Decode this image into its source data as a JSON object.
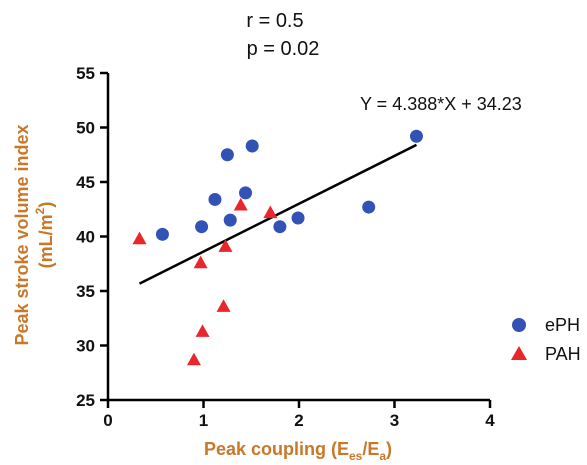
{
  "colors": {
    "axis_title": "#C9782A",
    "ePH": "#3352B5",
    "PAH": "#E8262B",
    "fit_line": "#000000"
  },
  "chart_data": {
    "type": "scatter",
    "stats": {
      "r": "r = 0.5",
      "p": "p = 0.02"
    },
    "equation": "Y = 4.388*X + 34.23",
    "xlabel": {
      "main": "Peak coupling (E",
      "sub1": "es",
      "mid": "/E",
      "sub2": "a",
      "end": ")"
    },
    "ylabel": {
      "line1": "Peak stroke volume index",
      "line2_main": "(mL/m",
      "line2_sup": "2",
      "line2_end": ")"
    },
    "xlim": [
      0,
      4
    ],
    "ylim": [
      25,
      55
    ],
    "xticks": [
      0,
      1,
      2,
      3,
      4
    ],
    "yticks": [
      25,
      30,
      35,
      40,
      45,
      50,
      55
    ],
    "grid": false,
    "legend_position": "right",
    "regression": {
      "slope": 4.388,
      "intercept": 34.23,
      "x_range": [
        0.33,
        3.23
      ]
    },
    "series": [
      {
        "name": "ePH",
        "marker": "circle",
        "points": [
          [
            0.57,
            40.2
          ],
          [
            0.98,
            40.9
          ],
          [
            1.12,
            43.4
          ],
          [
            1.25,
            47.5
          ],
          [
            1.28,
            41.5
          ],
          [
            1.44,
            44.0
          ],
          [
            1.51,
            48.3
          ],
          [
            1.8,
            40.9
          ],
          [
            1.99,
            41.7
          ],
          [
            2.73,
            42.7
          ],
          [
            3.23,
            49.2
          ]
        ]
      },
      {
        "name": "PAH",
        "marker": "triangle",
        "points": [
          [
            0.33,
            39.8
          ],
          [
            0.9,
            28.7
          ],
          [
            0.97,
            37.6
          ],
          [
            0.99,
            31.3
          ],
          [
            1.21,
            33.6
          ],
          [
            1.23,
            39.1
          ],
          [
            1.39,
            42.9
          ],
          [
            1.7,
            42.2
          ]
        ]
      }
    ]
  }
}
